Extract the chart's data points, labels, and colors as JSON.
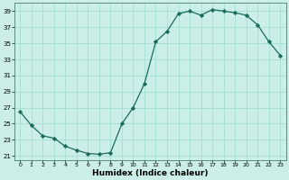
{
  "x": [
    0,
    1,
    2,
    3,
    4,
    5,
    6,
    7,
    8,
    9,
    10,
    11,
    12,
    13,
    14,
    15,
    16,
    17,
    18,
    19,
    20,
    21,
    22,
    23
  ],
  "y": [
    26.5,
    24.8,
    23.5,
    23.2,
    22.2,
    21.7,
    21.3,
    21.2,
    21.4,
    25.0,
    27.0,
    30.0,
    35.2,
    36.5,
    38.7,
    39.0,
    38.5,
    39.2,
    39.0,
    38.8,
    38.5,
    37.3,
    35.2,
    33.5
  ],
  "xlabel": "Humidex (Indice chaleur)",
  "xlim": [
    -0.5,
    23.5
  ],
  "ylim": [
    20.5,
    40.0
  ],
  "yticks": [
    21,
    23,
    25,
    27,
    29,
    31,
    33,
    35,
    37,
    39
  ],
  "xticks": [
    0,
    1,
    2,
    3,
    4,
    5,
    6,
    7,
    8,
    9,
    10,
    11,
    12,
    13,
    14,
    15,
    16,
    17,
    18,
    19,
    20,
    21,
    22,
    23
  ],
  "line_color": "#1a6b5a",
  "marker_color": "#1a6b5a",
  "bg_color": "#cceee8",
  "grid_color": "#99ddcc",
  "face_color": "#cceee8",
  "spine_color": "#336655"
}
